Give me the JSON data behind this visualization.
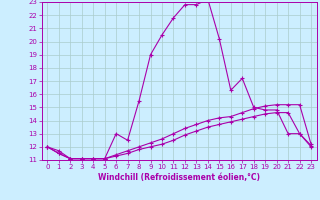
{
  "xlabel": "Windchill (Refroidissement éolien,°C)",
  "bg_color": "#cceeff",
  "line_color": "#aa00aa",
  "grid_color": "#aacccc",
  "ylim": [
    11,
    23
  ],
  "xlim": [
    -0.5,
    23.5
  ],
  "yticks": [
    11,
    12,
    13,
    14,
    15,
    16,
    17,
    18,
    19,
    20,
    21,
    22,
    23
  ],
  "xticks": [
    0,
    1,
    2,
    3,
    4,
    5,
    6,
    7,
    8,
    9,
    10,
    11,
    12,
    13,
    14,
    15,
    16,
    17,
    18,
    19,
    20,
    21,
    22,
    23
  ],
  "line1_x": [
    0,
    1,
    2,
    3,
    4,
    5,
    6,
    7,
    8,
    9,
    10,
    11,
    12,
    13,
    14,
    15,
    16,
    17,
    18,
    19,
    20,
    21,
    22,
    23
  ],
  "line1_y": [
    12.0,
    11.7,
    11.1,
    11.1,
    11.1,
    11.1,
    13.0,
    12.5,
    15.5,
    19.0,
    20.5,
    21.8,
    22.8,
    22.8,
    23.2,
    20.2,
    16.3,
    17.2,
    15.0,
    14.8,
    14.8,
    13.0,
    13.0,
    12.1
  ],
  "line2_x": [
    0,
    1,
    2,
    3,
    4,
    5,
    6,
    7,
    8,
    9,
    10,
    11,
    12,
    13,
    14,
    15,
    16,
    17,
    18,
    19,
    20,
    21,
    22,
    23
  ],
  "line2_y": [
    12.0,
    11.5,
    11.1,
    11.1,
    11.1,
    11.1,
    11.3,
    11.5,
    11.8,
    12.0,
    12.2,
    12.5,
    12.9,
    13.2,
    13.5,
    13.7,
    13.9,
    14.1,
    14.3,
    14.5,
    14.6,
    14.6,
    13.0,
    12.0
  ],
  "line3_x": [
    0,
    1,
    2,
    3,
    4,
    5,
    6,
    7,
    8,
    9,
    10,
    11,
    12,
    13,
    14,
    15,
    16,
    17,
    18,
    19,
    20,
    21,
    22,
    23
  ],
  "line3_y": [
    12.0,
    11.5,
    11.1,
    11.1,
    11.1,
    11.1,
    11.4,
    11.7,
    12.0,
    12.3,
    12.6,
    13.0,
    13.4,
    13.7,
    14.0,
    14.2,
    14.3,
    14.6,
    14.9,
    15.1,
    15.2,
    15.2,
    15.2,
    12.2
  ],
  "marker": "+",
  "markersize": 3,
  "linewidth": 0.8,
  "tick_fontsize": 5,
  "xlabel_fontsize": 5.5
}
